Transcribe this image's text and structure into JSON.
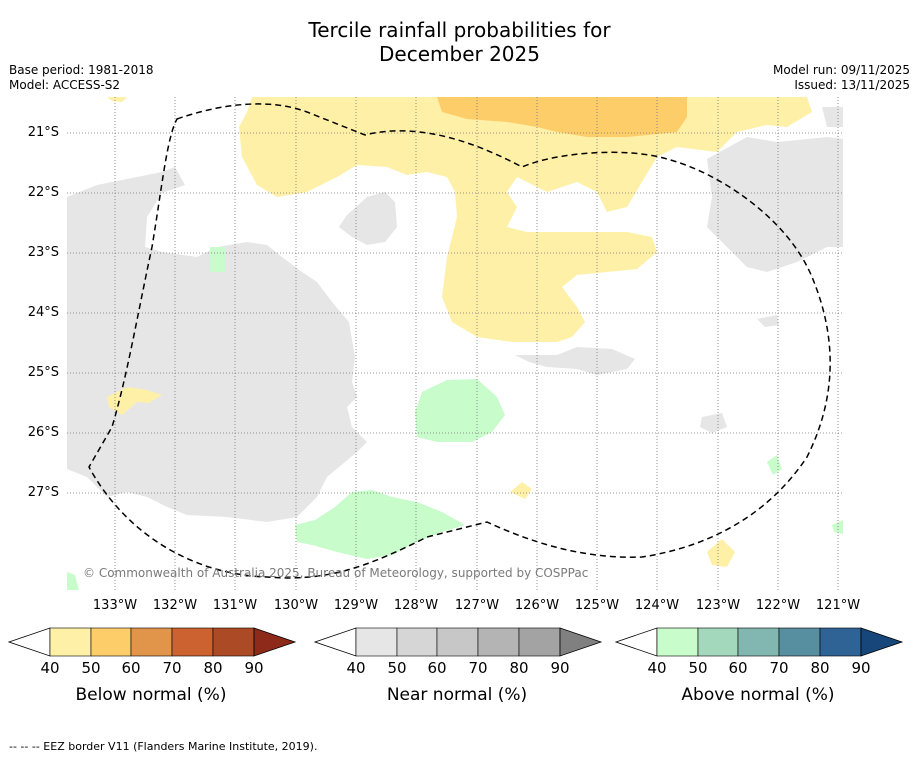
{
  "title_line1": "Tercile rainfall probabilities for",
  "title_line2": "December 2025",
  "base_period": "Base period: 1981-2018",
  "model": "Model: ACCESS-S2",
  "model_run": "Model run: 09/11/2025",
  "issued": "Issued: 13/11/2025",
  "lat_labels": [
    "21°S",
    "22°S",
    "23°S",
    "24°S",
    "25°S",
    "26°S",
    "27°S"
  ],
  "lon_labels": [
    "133°W",
    "132°W",
    "131°W",
    "130°W",
    "129°W",
    "128°W",
    "127°W",
    "126°W",
    "125°W",
    "124°W",
    "123°W",
    "122°W",
    "121°W"
  ],
  "copyright": "© Commonwealth of Australia 2025, Bureau of Meteorology, supported by COSPPac",
  "colorbars": [
    {
      "label": "Below normal (%)",
      "colors": [
        "#fff0a8",
        "#fdcd6a",
        "#e0954a",
        "#cb6230",
        "#ad4a26",
        "#8e2a1a"
      ]
    },
    {
      "label": "Near normal (%)",
      "colors": [
        "#e6e6e6",
        "#d6d6d6",
        "#c7c7c7",
        "#b4b4b4",
        "#a3a3a3",
        "#808080"
      ]
    },
    {
      "label": "Above normal (%)",
      "colors": [
        "#c8fccb",
        "#a4d8bc",
        "#82b7b1",
        "#578ea0",
        "#2f6295",
        "#17477a"
      ]
    }
  ],
  "tick_values": [
    "40",
    "50",
    "60",
    "70",
    "80",
    "90"
  ],
  "footnote": "--  --  -- EEZ border V11 (Flanders Marine Institute, 2019)."
}
